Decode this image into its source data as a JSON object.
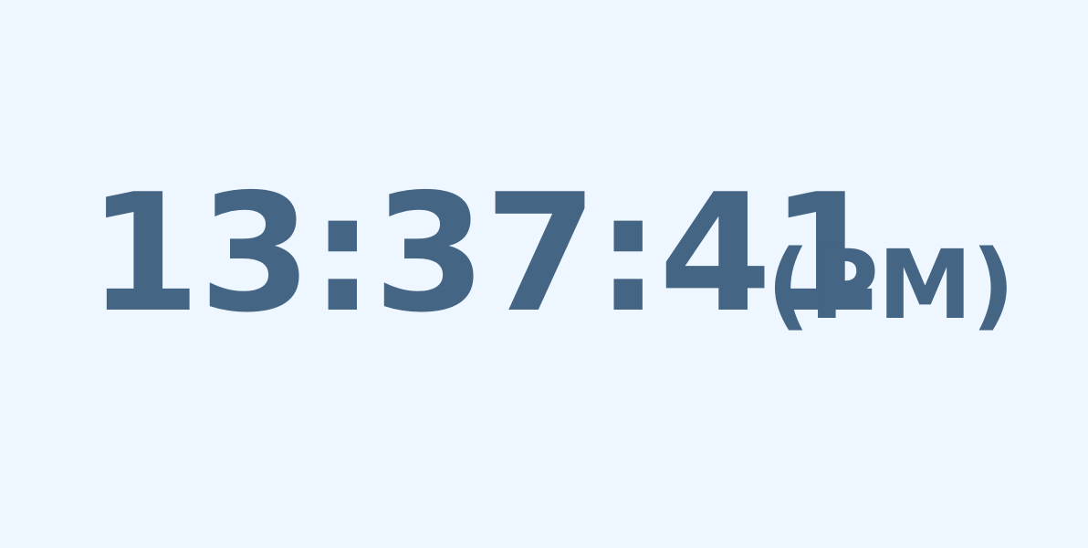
{
  "clock": {
    "time": "13:37:41",
    "period": "(PM)"
  },
  "colors": {
    "background": "#eef6ff",
    "text": "#456584"
  }
}
